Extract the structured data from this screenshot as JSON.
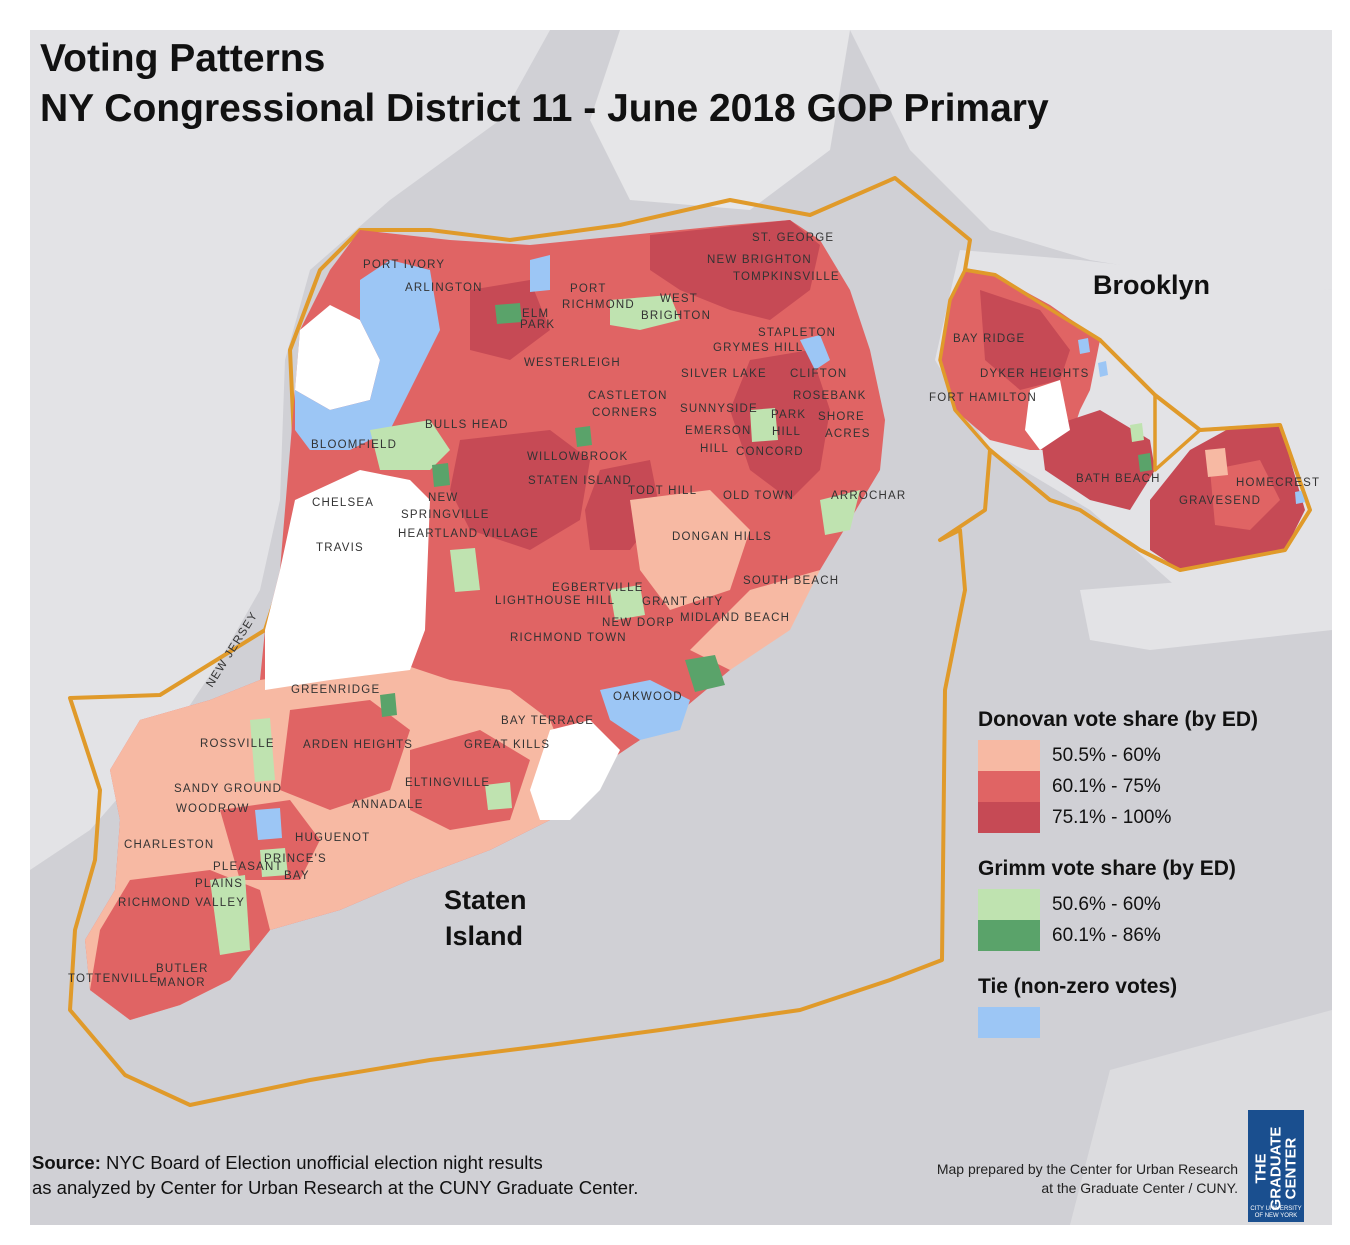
{
  "title": {
    "line1": "Voting Patterns",
    "line2": "NY Congressional District 11 - June 2018 GOP Primary"
  },
  "map_labels": {
    "borough_staten": [
      "Staten",
      "Island"
    ],
    "borough_brooklyn": "Brooklyn",
    "state": "NEW JERSEY",
    "neighborhoods": [
      "PORT IVORY",
      "ARLINGTON",
      "ELM",
      "PARK",
      "PORT",
      "RICHMOND",
      "WEST",
      "BRIGHTON",
      "ST. GEORGE",
      "NEW BRIGHTON",
      "TOMPKINSVILLE",
      "STAPLETON",
      "GRYMES HILL",
      "WESTERLEIGH",
      "SILVER LAKE",
      "CLIFTON",
      "CASTLETON",
      "CORNERS",
      "ROSEBANK",
      "SUNNYSIDE",
      "SHORE",
      "ACRES",
      "PARK",
      "HILL",
      "EMERSON",
      "HILL",
      "CONCORD",
      "BULLS HEAD",
      "BLOOMFIELD",
      "WILLOWBROOK",
      "STATEN ISLAND",
      "TODT HILL",
      "OLD TOWN",
      "ARROCHAR",
      "CHELSEA",
      "NEW",
      "SPRINGVILLE",
      "HEARTLAND VILLAGE",
      "TRAVIS",
      "DONGAN HILLS",
      "SOUTH BEACH",
      "EGBERTVILLE",
      "LIGHTHOUSE HILL",
      "GRANT CITY",
      "NEW DORP",
      "MIDLAND BEACH",
      "RICHMOND TOWN",
      "GREENRIDGE",
      "OAKWOOD",
      "BAY TERRACE",
      "ROSSVILLE",
      "ARDEN HEIGHTS",
      "GREAT KILLS",
      "SANDY GROUND",
      "ELTINGVILLE",
      "WOODROW",
      "ANNADALE",
      "CHARLESTON",
      "HUGUENOT",
      "PLEASANT",
      "PLAINS",
      "PRINCE'S",
      "BAY",
      "RICHMOND VALLEY",
      "BUTLER",
      "MANOR",
      "TOTTENVILLE",
      "BAY RIDGE",
      "DYKER HEIGHTS",
      "FORT HAMILTON",
      "BATH BEACH",
      "GRAVESEND",
      "HOMECREST"
    ]
  },
  "legend": {
    "donovan": {
      "title": "Donovan vote share (by ED)",
      "items": [
        {
          "label": "50.5% - 60%",
          "color": "#f7b9a3"
        },
        {
          "label": "60.1% - 75%",
          "color": "#e06464"
        },
        {
          "label": "75.1% - 100%",
          "color": "#c64a55"
        }
      ]
    },
    "grimm": {
      "title": "Grimm vote share (by ED)",
      "items": [
        {
          "label": "50.6% - 60%",
          "color": "#bfe3b0"
        },
        {
          "label": "60.1% - 86%",
          "color": "#5aa36a"
        }
      ]
    },
    "tie": {
      "title": "Tie (non-zero votes)",
      "color": "#9cc6f5"
    }
  },
  "source": {
    "bold": "Source:",
    "line1": "NYC Board of Election unofficial election night results",
    "line2": "as analyzed by Center for Urban Research at the CUNY Graduate Center."
  },
  "credit": {
    "line1": "Map prepared by the Center for Urban Research",
    "line2": "at the Graduate Center / CUNY."
  },
  "logo": {
    "main": [
      "THE",
      "GRADUATE",
      "CENTER"
    ],
    "sub": [
      "CITY UNIVERSITY",
      "OF NEW YORK"
    ]
  },
  "colors": {
    "land": "#e4e4e6",
    "water": "#d0d0d5",
    "district_outline": "#e09a2a",
    "no_votes": "#ffffff"
  }
}
